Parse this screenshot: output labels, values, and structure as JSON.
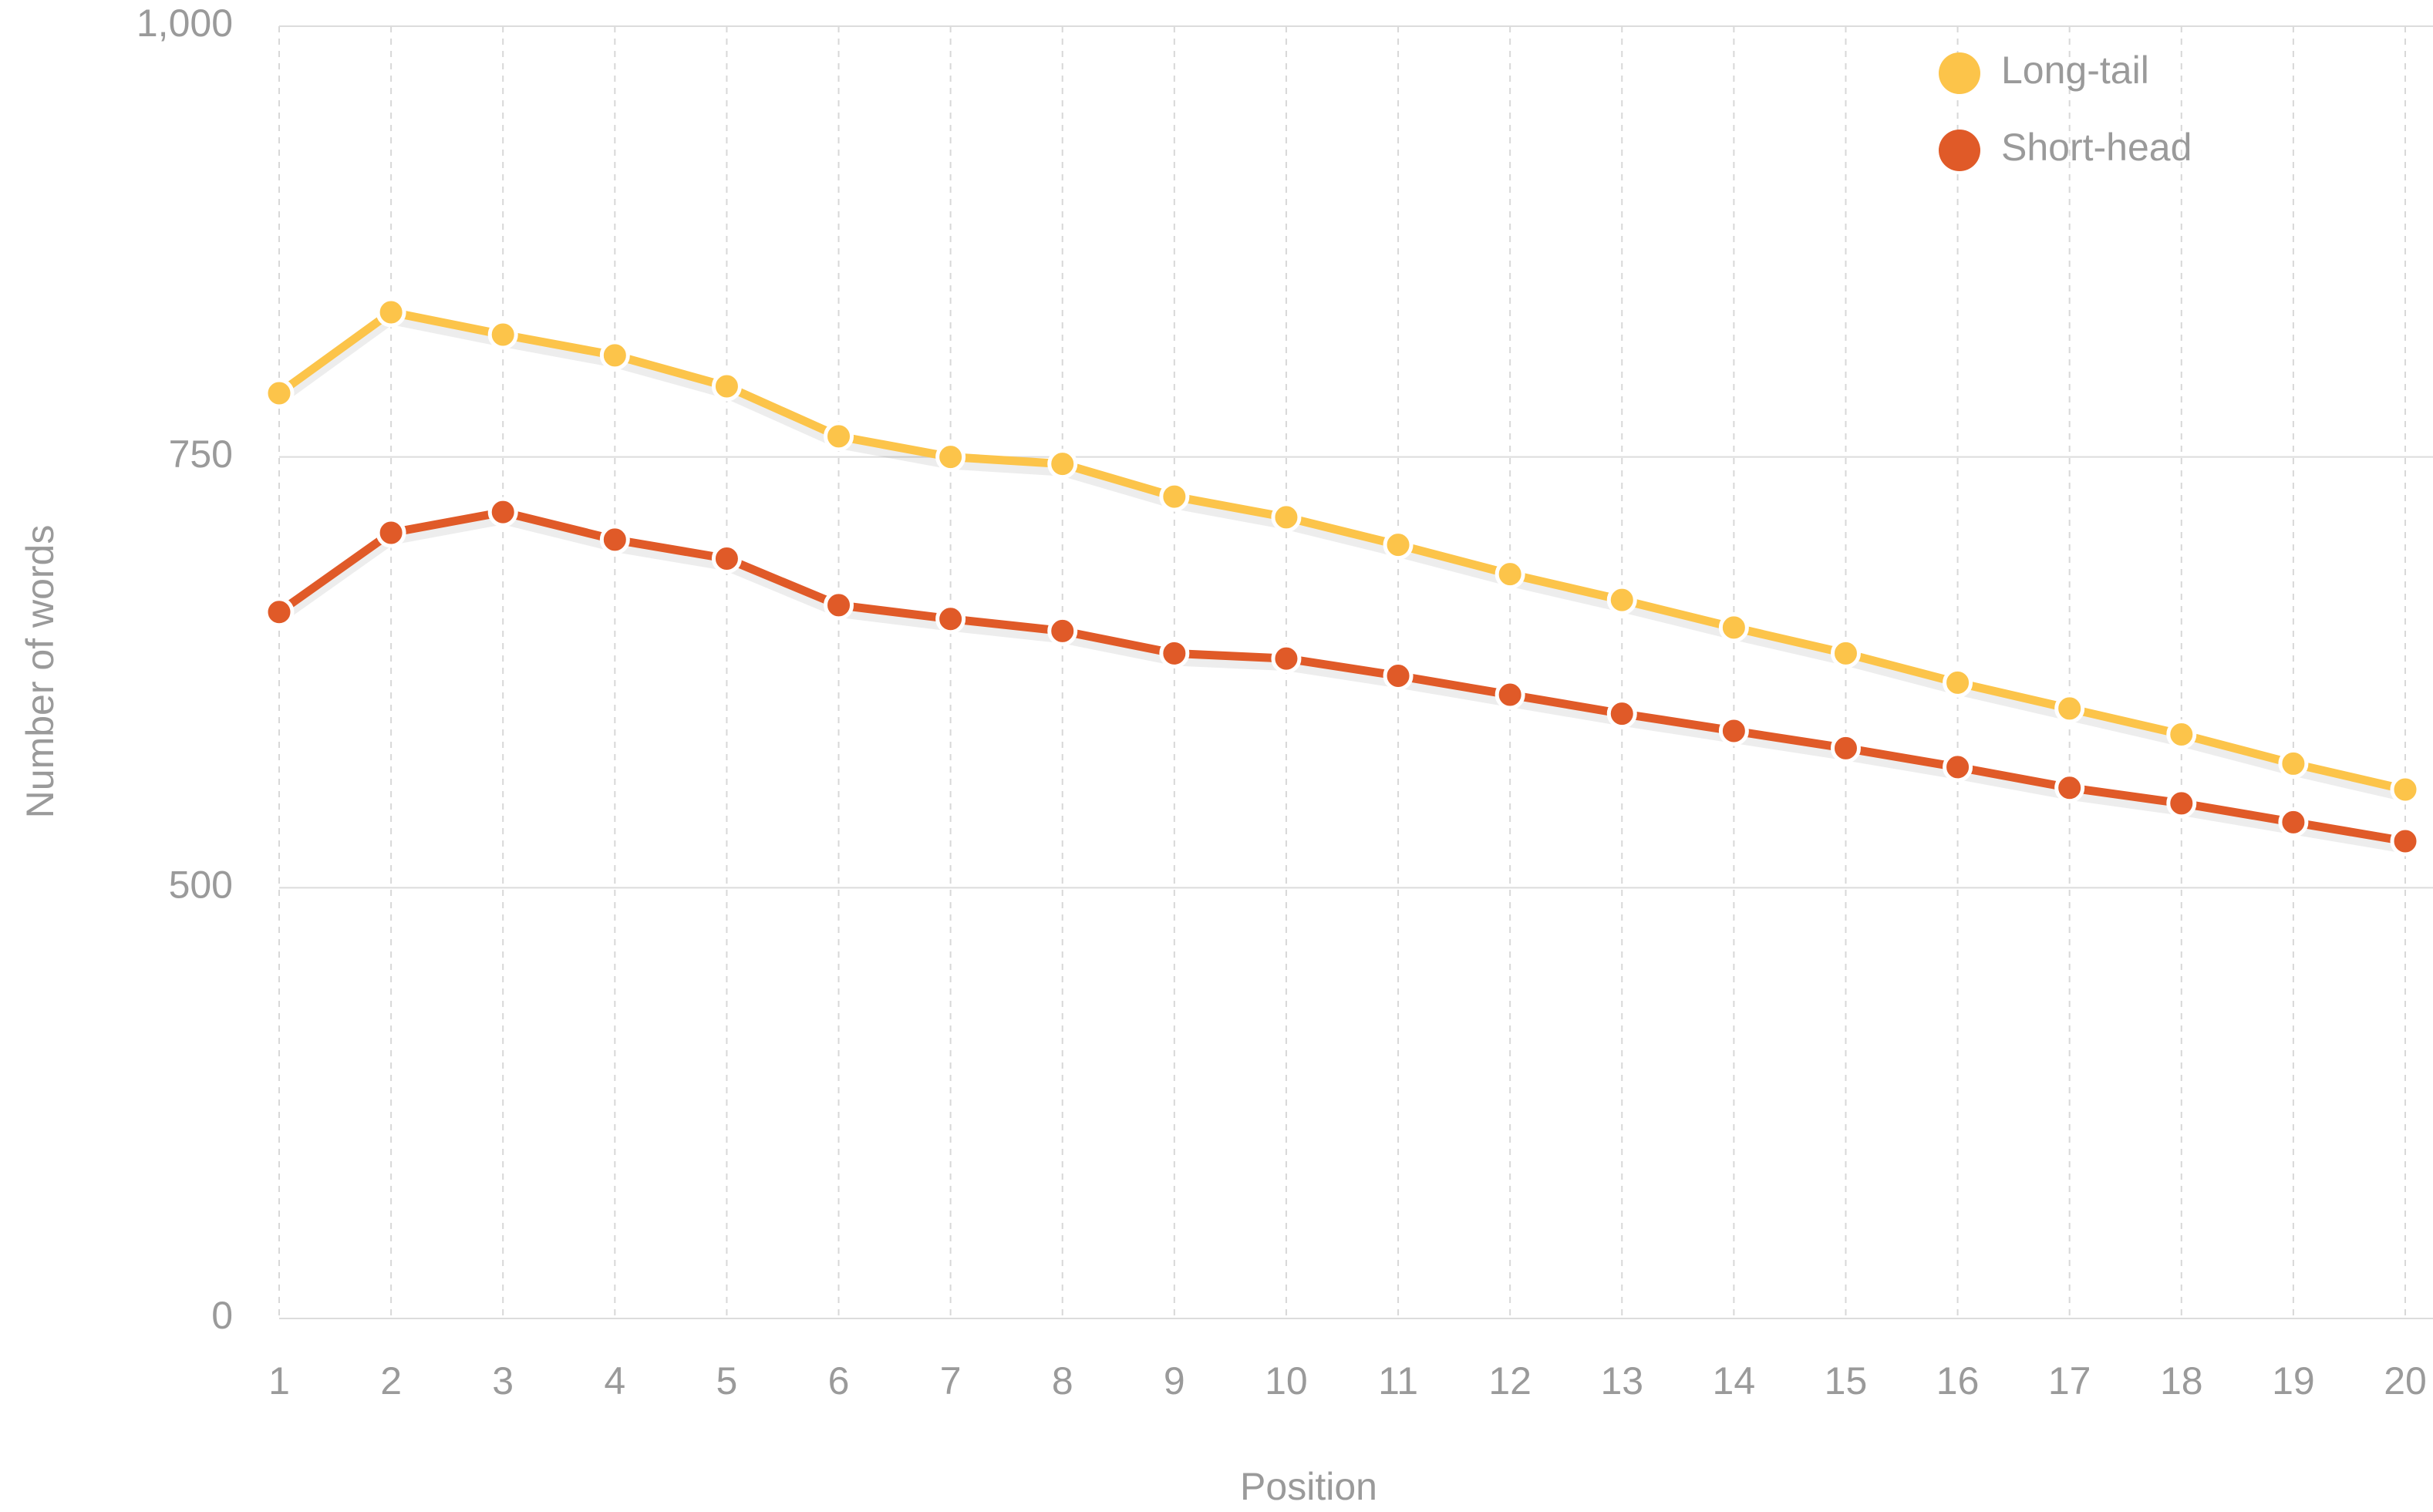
{
  "chart_data": {
    "type": "line",
    "x_label": "Position",
    "y_label": "Number of words",
    "x": [
      1,
      2,
      3,
      4,
      5,
      6,
      7,
      8,
      9,
      10,
      11,
      12,
      13,
      14,
      15,
      16,
      17,
      18,
      19,
      20
    ],
    "xlim": [
      1,
      20
    ],
    "xticks": [
      1,
      2,
      3,
      4,
      5,
      6,
      7,
      8,
      9,
      10,
      11,
      12,
      13,
      14,
      15,
      16,
      17,
      18,
      19,
      20
    ],
    "ylim": [
      0,
      1000
    ],
    "yticks": [
      0,
      500,
      750,
      {
        "value": 1000,
        "label": "1,000"
      }
    ],
    "grid": true,
    "legend": "upper right",
    "series": [
      {
        "name": "Long-tail",
        "color": "#fcc44a",
        "values": [
          787,
          834,
          821,
          809,
          791,
          762,
          750,
          746,
          727,
          715,
          699,
          682,
          667,
          651,
          636,
          619,
          604,
          589,
          572,
          557
        ]
      },
      {
        "name": "Short-head",
        "color": "#e05a28",
        "values": [
          660,
          706,
          718,
          702,
          691,
          664,
          656,
          649,
          636,
          633,
          623,
          612,
          601,
          591,
          581,
          570,
          558,
          549,
          538,
          527
        ]
      }
    ]
  }
}
